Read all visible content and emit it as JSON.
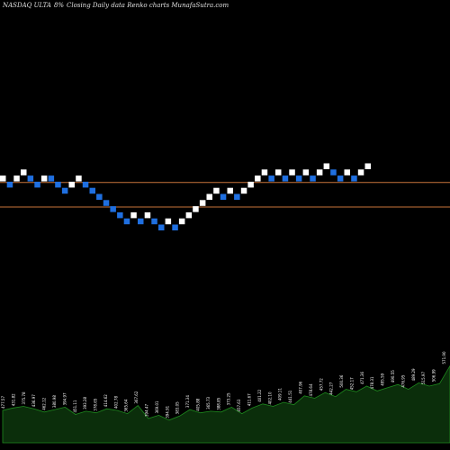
{
  "header": {
    "symbol": "NASDAQ ULTA",
    "change": "8%",
    "description": "Closing Daily data  Renko  charts MunafaSutra.com"
  },
  "colors": {
    "background": "#000000",
    "up_brick": "#ffffff",
    "down_brick": "#1f6fe0",
    "ref_line": "#c8743a",
    "volume_fill": "#0b2e0b",
    "volume_stroke": "#1e8a1e"
  },
  "chart_data": {
    "type": "renko",
    "bricks": [
      {
        "level": 3,
        "dir": "up"
      },
      {
        "level": 2,
        "dir": "down"
      },
      {
        "level": 3,
        "dir": "up"
      },
      {
        "level": 4,
        "dir": "up"
      },
      {
        "level": 3,
        "dir": "down"
      },
      {
        "level": 2,
        "dir": "down"
      },
      {
        "level": 3,
        "dir": "up"
      },
      {
        "level": 3,
        "dir": "down"
      },
      {
        "level": 2,
        "dir": "down"
      },
      {
        "level": 1,
        "dir": "down"
      },
      {
        "level": 2,
        "dir": "up"
      },
      {
        "level": 3,
        "dir": "up"
      },
      {
        "level": 2,
        "dir": "down"
      },
      {
        "level": 1,
        "dir": "down"
      },
      {
        "level": 0,
        "dir": "down"
      },
      {
        "level": -1,
        "dir": "down"
      },
      {
        "level": -2,
        "dir": "down"
      },
      {
        "level": -3,
        "dir": "down"
      },
      {
        "level": -4,
        "dir": "down"
      },
      {
        "level": -3,
        "dir": "up"
      },
      {
        "level": -4,
        "dir": "down"
      },
      {
        "level": -3,
        "dir": "up"
      },
      {
        "level": -4,
        "dir": "down"
      },
      {
        "level": -5,
        "dir": "down"
      },
      {
        "level": -4,
        "dir": "up"
      },
      {
        "level": -5,
        "dir": "down"
      },
      {
        "level": -4,
        "dir": "up"
      },
      {
        "level": -3,
        "dir": "up"
      },
      {
        "level": -2,
        "dir": "up"
      },
      {
        "level": -1,
        "dir": "up"
      },
      {
        "level": 0,
        "dir": "up"
      },
      {
        "level": 1,
        "dir": "up"
      },
      {
        "level": 0,
        "dir": "down"
      },
      {
        "level": 1,
        "dir": "up"
      },
      {
        "level": 0,
        "dir": "down"
      },
      {
        "level": 1,
        "dir": "up"
      },
      {
        "level": 2,
        "dir": "up"
      },
      {
        "level": 3,
        "dir": "up"
      },
      {
        "level": 4,
        "dir": "up"
      },
      {
        "level": 3,
        "dir": "down"
      },
      {
        "level": 4,
        "dir": "up"
      },
      {
        "level": 3,
        "dir": "down"
      },
      {
        "level": 4,
        "dir": "up"
      },
      {
        "level": 3,
        "dir": "down"
      },
      {
        "level": 4,
        "dir": "up"
      },
      {
        "level": 3,
        "dir": "down"
      },
      {
        "level": 4,
        "dir": "up"
      },
      {
        "level": 5,
        "dir": "up"
      },
      {
        "level": 4,
        "dir": "down"
      },
      {
        "level": 3,
        "dir": "down"
      },
      {
        "level": 4,
        "dir": "up"
      },
      {
        "level": 3,
        "dir": "down"
      },
      {
        "level": 4,
        "dir": "up"
      },
      {
        "level": 5,
        "dir": "up"
      }
    ],
    "reference_levels": [
      2.5,
      -1.5
    ],
    "volume_labels": [
      "477.57",
      "431.82",
      "375.78",
      "436.97",
      "462.12",
      "380.98",
      "394.97",
      "451.11",
      "393.28",
      "378.65",
      "414.62",
      "402.78",
      "365.64",
      "367.62",
      "394.47",
      "369.01",
      "394.91",
      "383.05",
      "371.34",
      "405.88",
      "365.73",
      "388.85",
      "373.25",
      "457.63",
      "411.67",
      "401.22",
      "402.10",
      "409.11",
      "441.51",
      "407.96",
      "478.64",
      "457.72",
      "442.27",
      "500.36",
      "452.17",
      "471.36",
      "478.31",
      "495.59",
      "490.55",
      "476.95",
      "489.29",
      "515.97",
      "506.99",
      "571.90"
    ],
    "volume_values": [
      40,
      43,
      45,
      42,
      38,
      41,
      44,
      35,
      39,
      37,
      42,
      40,
      36,
      46,
      30,
      34,
      28,
      33,
      41,
      37,
      39,
      38,
      44,
      36,
      43,
      48,
      45,
      50,
      47,
      58,
      55,
      62,
      57,
      66,
      63,
      70,
      64,
      68,
      72,
      66,
      74,
      70,
      73,
      95
    ]
  }
}
